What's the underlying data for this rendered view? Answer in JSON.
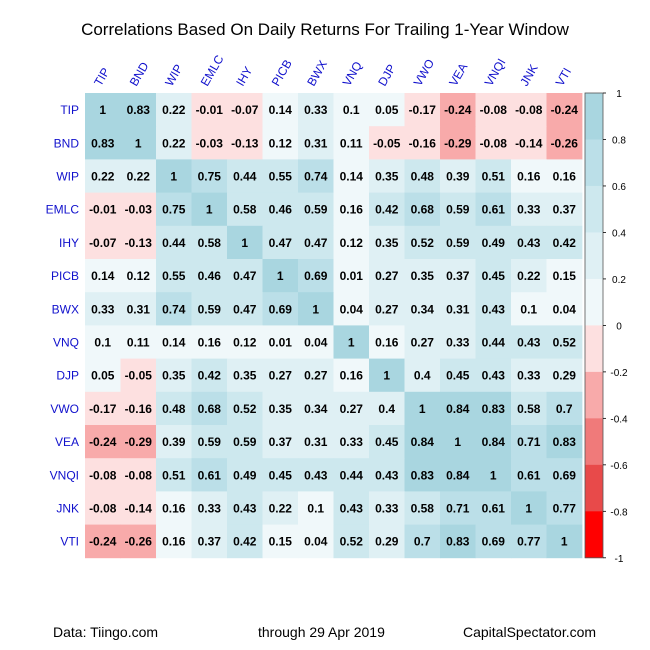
{
  "chart_data": {
    "type": "heatmap",
    "title": "Correlations Based On Daily Returns For Trailing 1-Year Window",
    "labels": [
      "TIP",
      "BND",
      "WIP",
      "EMLC",
      "IHY",
      "PICB",
      "BWX",
      "VNQ",
      "DJP",
      "VWO",
      "VEA",
      "VNQI",
      "JNK",
      "VTI"
    ],
    "matrix": [
      [
        1,
        0.83,
        0.22,
        -0.01,
        -0.07,
        0.14,
        0.33,
        0.1,
        0.05,
        -0.17,
        -0.24,
        -0.08,
        -0.08,
        -0.24
      ],
      [
        0.83,
        1,
        0.22,
        -0.03,
        -0.13,
        0.12,
        0.31,
        0.11,
        -0.05,
        -0.16,
        -0.29,
        -0.08,
        -0.14,
        -0.26
      ],
      [
        0.22,
        0.22,
        1,
        0.75,
        0.44,
        0.55,
        0.74,
        0.14,
        0.35,
        0.48,
        0.39,
        0.51,
        0.16,
        0.16
      ],
      [
        -0.01,
        -0.03,
        0.75,
        1,
        0.58,
        0.46,
        0.59,
        0.16,
        0.42,
        0.68,
        0.59,
        0.61,
        0.33,
        0.37
      ],
      [
        -0.07,
        -0.13,
        0.44,
        0.58,
        1,
        0.47,
        0.47,
        0.12,
        0.35,
        0.52,
        0.59,
        0.49,
        0.43,
        0.42
      ],
      [
        0.14,
        0.12,
        0.55,
        0.46,
        0.47,
        1,
        0.69,
        0.01,
        0.27,
        0.35,
        0.37,
        0.45,
        0.22,
        0.15
      ],
      [
        0.33,
        0.31,
        0.74,
        0.59,
        0.47,
        0.69,
        1,
        0.04,
        0.27,
        0.34,
        0.31,
        0.43,
        0.1,
        0.04
      ],
      [
        0.1,
        0.11,
        0.14,
        0.16,
        0.12,
        0.01,
        0.04,
        1,
        0.16,
        0.27,
        0.33,
        0.44,
        0.43,
        0.52
      ],
      [
        0.05,
        -0.05,
        0.35,
        0.42,
        0.35,
        0.27,
        0.27,
        0.16,
        1,
        0.4,
        0.45,
        0.43,
        0.33,
        0.29
      ],
      [
        -0.17,
        -0.16,
        0.48,
        0.68,
        0.52,
        0.35,
        0.34,
        0.27,
        0.4,
        1,
        0.84,
        0.83,
        0.58,
        0.7
      ],
      [
        -0.24,
        -0.29,
        0.39,
        0.59,
        0.59,
        0.37,
        0.31,
        0.33,
        0.45,
        0.84,
        1,
        0.84,
        0.71,
        0.83
      ],
      [
        -0.08,
        -0.08,
        0.51,
        0.61,
        0.49,
        0.45,
        0.43,
        0.44,
        0.43,
        0.83,
        0.84,
        1,
        0.61,
        0.69
      ],
      [
        -0.08,
        -0.14,
        0.16,
        0.33,
        0.43,
        0.22,
        0.1,
        0.43,
        0.33,
        0.58,
        0.71,
        0.61,
        1,
        0.77
      ],
      [
        -0.24,
        -0.26,
        0.16,
        0.37,
        0.42,
        0.15,
        0.04,
        0.52,
        0.29,
        0.7,
        0.83,
        0.69,
        0.77,
        1
      ]
    ],
    "color_scale": {
      "range": [
        -1,
        1
      ],
      "ticks": [
        "1",
        "0.8",
        "0.6",
        "0.4",
        "0.2",
        "0",
        "-0.2",
        "-0.4",
        "-0.6",
        "-0.8",
        "-1"
      ],
      "bins": [
        {
          "min": 0.8,
          "max": 1.0,
          "color": "#a9d6e0"
        },
        {
          "min": 0.6,
          "max": 0.8,
          "color": "#bbdfe8"
        },
        {
          "min": 0.4,
          "max": 0.6,
          "color": "#cde8ee"
        },
        {
          "min": 0.2,
          "max": 0.4,
          "color": "#dff0f4"
        },
        {
          "min": 0.0,
          "max": 0.2,
          "color": "#f0f8fa"
        },
        {
          "min": -0.2,
          "max": 0.0,
          "color": "#fde0e0"
        },
        {
          "min": -0.4,
          "max": -0.2,
          "color": "#f8aaaa"
        },
        {
          "min": -0.6,
          "max": -0.4,
          "color": "#f07a7a"
        },
        {
          "min": -0.8,
          "max": -0.6,
          "color": "#e84a4a"
        },
        {
          "min": -1.0,
          "max": -0.8,
          "color": "#ff0000"
        }
      ]
    },
    "grid": false,
    "legend": "right",
    "label_color": "#1010cc"
  },
  "footer": {
    "source": "Data: Tiingo.com",
    "date": "through 29 Apr 2019",
    "site": "CapitalSpectator.com"
  }
}
